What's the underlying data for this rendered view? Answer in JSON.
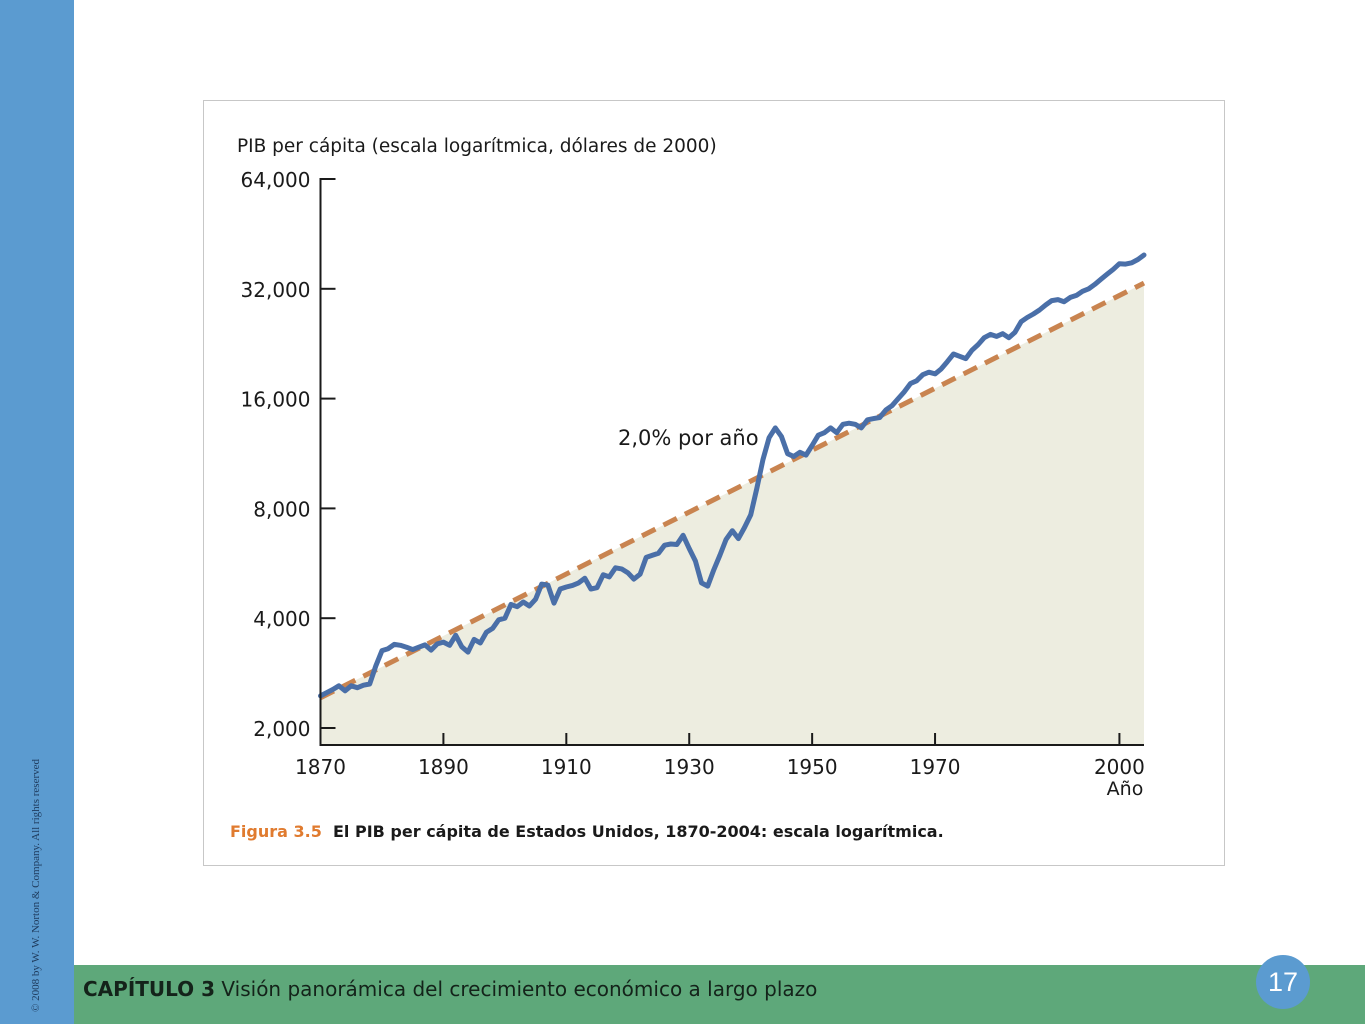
{
  "footer": {
    "chapter_label": "CAPÍTULO 3",
    "chapter_title": "Visión panorámica del crecimiento económico a largo plazo",
    "page_number": "17",
    "copyright": "© 2008 by W. W. Norton & Company. All rights reserved"
  },
  "colors": {
    "sidebar": "#5b9bd0",
    "footer_bar": "#5ea87a",
    "gdp_line": "#4a6fa8",
    "trend_line": "#c98450",
    "area_fill": "#edede0",
    "caption_accent": "#e07b2f"
  },
  "figure": {
    "number": "Figura 3.5",
    "caption": "El PIB per cápita de Estados Unidos, 1870-2004: escala logarítmica."
  },
  "chart_data": {
    "type": "line",
    "title": "",
    "ylabel": "PIB per cápita (escala logarítmica, dólares de 2000)",
    "xlabel": "Año",
    "y_scale": "log",
    "ylim": [
      2000,
      64000
    ],
    "xlim": [
      1870,
      2004
    ],
    "y_ticks": [
      2000,
      4000,
      8000,
      16000,
      32000,
      64000
    ],
    "y_tick_labels": [
      "2,000",
      "4,000",
      "8,000",
      "16,000",
      "32,000",
      "64,000"
    ],
    "x_ticks": [
      1870,
      1890,
      1910,
      1930,
      1950,
      1970,
      2000
    ],
    "x_tick_labels": [
      "1870",
      "1890",
      "1910",
      "1930",
      "1950",
      "1970",
      "2000"
    ],
    "grid": false,
    "annotation": "2,0% por año",
    "series": [
      {
        "kind": "actual",
        "x": [
          1870,
          1871,
          1872,
          1873,
          1874,
          1875,
          1876,
          1877,
          1878,
          1879,
          1880,
          1881,
          1882,
          1883,
          1884,
          1885,
          1886,
          1887,
          1888,
          1889,
          1890,
          1891,
          1892,
          1893,
          1894,
          1895,
          1896,
          1897,
          1898,
          1899,
          1900,
          1901,
          1902,
          1903,
          1904,
          1905,
          1906,
          1907,
          1908,
          1909,
          1910,
          1911,
          1912,
          1913,
          1914,
          1915,
          1916,
          1917,
          1918,
          1919,
          1920,
          1921,
          1922,
          1923,
          1924,
          1925,
          1926,
          1927,
          1928,
          1929,
          1930,
          1931,
          1932,
          1933,
          1934,
          1935,
          1936,
          1937,
          1938,
          1939,
          1940,
          1941,
          1942,
          1943,
          1944,
          1945,
          1946,
          1947,
          1948,
          1949,
          1950,
          1951,
          1952,
          1953,
          1954,
          1955,
          1956,
          1957,
          1958,
          1959,
          1960,
          1961,
          1962,
          1963,
          1964,
          1965,
          1966,
          1967,
          1968,
          1969,
          1970,
          1971,
          1972,
          1973,
          1974,
          1975,
          1976,
          1977,
          1978,
          1979,
          1980,
          1981,
          1982,
          1983,
          1984,
          1985,
          1986,
          1987,
          1988,
          1989,
          1990,
          1991,
          1992,
          1993,
          1994,
          1995,
          1996,
          1997,
          1998,
          1999,
          2000,
          2001,
          2002,
          2003,
          2004
        ],
        "values": [
          2450,
          2500,
          2550,
          2610,
          2530,
          2610,
          2580,
          2620,
          2640,
          2960,
          3260,
          3300,
          3390,
          3370,
          3330,
          3280,
          3330,
          3380,
          3270,
          3400,
          3440,
          3370,
          3590,
          3340,
          3230,
          3500,
          3420,
          3660,
          3750,
          3960,
          4000,
          4360,
          4300,
          4430,
          4320,
          4510,
          4960,
          4930,
          4400,
          4810,
          4870,
          4920,
          5000,
          5150,
          4810,
          4850,
          5260,
          5190,
          5500,
          5460,
          5330,
          5120,
          5280,
          5870,
          5950,
          6030,
          6340,
          6390,
          6370,
          6750,
          6210,
          5740,
          5000,
          4900,
          5430,
          5960,
          6580,
          6950,
          6610,
          7090,
          7680,
          9070,
          10900,
          12500,
          13300,
          12600,
          11300,
          11100,
          11400,
          11200,
          11900,
          12700,
          12900,
          13300,
          12900,
          13600,
          13700,
          13600,
          13300,
          14000,
          14100,
          14200,
          14900,
          15300,
          16000,
          16700,
          17600,
          17900,
          18600,
          18900,
          18700,
          19300,
          20200,
          21200,
          20900,
          20600,
          21700,
          22500,
          23500,
          24000,
          23700,
          24100,
          23500,
          24300,
          26000,
          26700,
          27300,
          28000,
          28900,
          29700,
          29900,
          29500,
          30300,
          30700,
          31500,
          32000,
          32900,
          34000,
          35100,
          36200,
          37500,
          37400,
          37700,
          38500,
          39600
        ]
      },
      {
        "kind": "trend",
        "growth_rate": 0.02,
        "x": [
          1870,
          2004
        ],
        "values": [
          2420,
          33180
        ]
      }
    ]
  }
}
